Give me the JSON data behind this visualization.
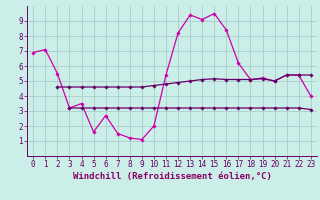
{
  "bg_color": "#cceee8",
  "grid_color": "#aacccc",
  "line_color_main": "#cc00aa",
  "line_color_upper": "#660066",
  "line_color_lower": "#660066",
  "xlabel": "Windchill (Refroidissement éolien,°C)",
  "xlim": [
    -0.5,
    23.5
  ],
  "ylim": [
    0,
    10
  ],
  "xticks": [
    0,
    1,
    2,
    3,
    4,
    5,
    6,
    7,
    8,
    9,
    10,
    11,
    12,
    13,
    14,
    15,
    16,
    17,
    18,
    19,
    20,
    21,
    22,
    23
  ],
  "yticks": [
    1,
    2,
    3,
    4,
    5,
    6,
    7,
    8,
    9
  ],
  "main_x": [
    0,
    1,
    2,
    3,
    4,
    5,
    6,
    7,
    8,
    9,
    10,
    11,
    12,
    13,
    14,
    15,
    16,
    17,
    18,
    19,
    20,
    21,
    22,
    23
  ],
  "main_y": [
    6.9,
    7.1,
    5.5,
    3.2,
    3.5,
    1.6,
    2.7,
    1.5,
    1.2,
    1.1,
    2.0,
    5.4,
    8.2,
    9.4,
    9.1,
    9.5,
    8.4,
    6.2,
    5.1,
    5.2,
    5.0,
    5.4,
    5.4,
    4.0
  ],
  "upper_x": [
    2,
    3,
    4,
    5,
    6,
    7,
    8,
    9,
    10,
    11,
    12,
    13,
    14,
    15,
    16,
    17,
    18,
    19,
    20,
    21,
    22,
    23
  ],
  "upper_y": [
    4.6,
    4.6,
    4.6,
    4.6,
    4.6,
    4.6,
    4.6,
    4.6,
    4.7,
    4.8,
    4.9,
    5.0,
    5.1,
    5.15,
    5.1,
    5.1,
    5.1,
    5.15,
    5.0,
    5.4,
    5.4,
    5.4
  ],
  "lower_x": [
    3,
    4,
    5,
    6,
    7,
    8,
    9,
    10,
    11,
    12,
    13,
    14,
    15,
    16,
    17,
    18,
    19,
    20,
    21,
    22,
    23
  ],
  "lower_y": [
    3.2,
    3.2,
    3.2,
    3.2,
    3.2,
    3.2,
    3.2,
    3.2,
    3.2,
    3.2,
    3.2,
    3.2,
    3.2,
    3.2,
    3.2,
    3.2,
    3.2,
    3.2,
    3.2,
    3.2,
    3.1
  ],
  "font_size_label": 6.5,
  "font_size_ticks": 5.5,
  "marker": "D",
  "markersize": 1.8,
  "linewidth": 0.9
}
